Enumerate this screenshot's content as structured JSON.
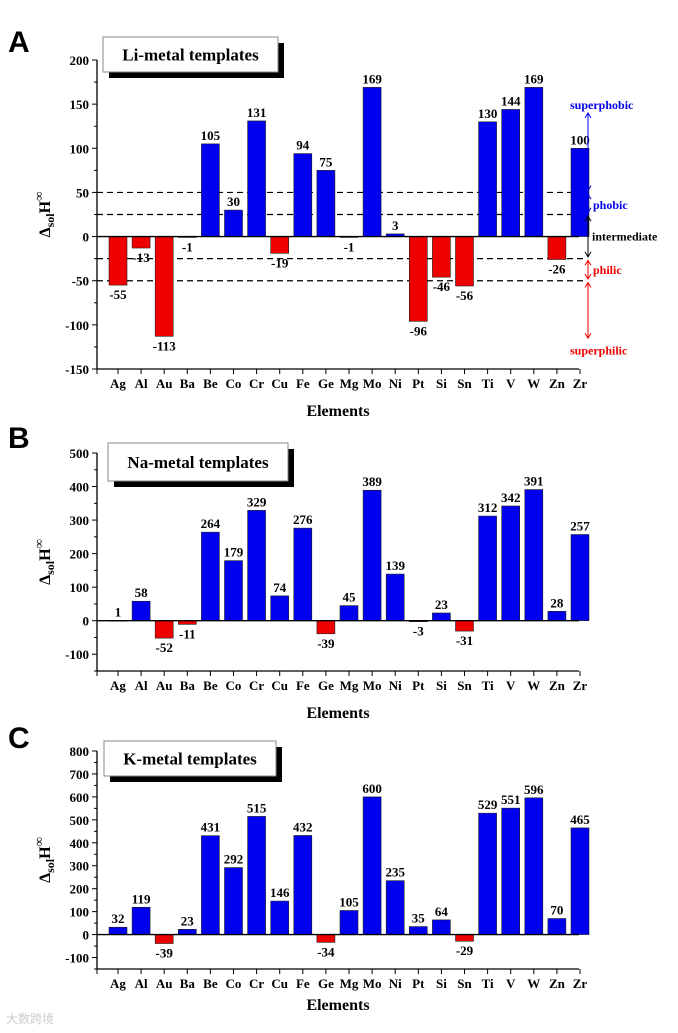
{
  "chart_data": [
    {
      "type": "bar",
      "panel": "A",
      "title": "Li-metal templates",
      "xlabel": "Elements",
      "ylabel": "ΔsolH∞",
      "ylim": [
        -150,
        200
      ],
      "yticks": [
        -150,
        -100,
        -50,
        0,
        50,
        100,
        150,
        200
      ],
      "categories": [
        "Ag",
        "Al",
        "Au",
        "Ba",
        "Be",
        "Co",
        "Cr",
        "Cu",
        "Fe",
        "Ge",
        "Mg",
        "Mo",
        "Ni",
        "Pt",
        "Si",
        "Sn",
        "Ti",
        "V",
        "W",
        "Zn",
        "Zr"
      ],
      "values": [
        -55,
        -13,
        -113,
        -1,
        105,
        30,
        131,
        -19,
        94,
        75,
        -1,
        169,
        3,
        -96,
        -46,
        -56,
        130,
        144,
        169,
        -26,
        100
      ],
      "reference_lines": [
        50,
        25,
        -25,
        -50
      ],
      "annotations": [
        {
          "label": "superphobic",
          "color": "#0000ee"
        },
        {
          "label": "phobic",
          "color": "#0000ee"
        },
        {
          "label": "intermediate",
          "color": "#000000"
        },
        {
          "label": "philic",
          "color": "#ee0000"
        },
        {
          "label": "superphilic",
          "color": "#ee0000"
        }
      ]
    },
    {
      "type": "bar",
      "panel": "B",
      "title": "Na-metal templates",
      "xlabel": "Elements",
      "ylabel": "ΔsolH∞",
      "ylim": [
        -150,
        500
      ],
      "yticks": [
        -100,
        0,
        100,
        200,
        300,
        400,
        500
      ],
      "categories": [
        "Ag",
        "Al",
        "Au",
        "Ba",
        "Be",
        "Co",
        "Cr",
        "Cu",
        "Fe",
        "Ge",
        "Mg",
        "Mo",
        "Ni",
        "Pt",
        "Si",
        "Sn",
        "Ti",
        "V",
        "W",
        "Zn",
        "Zr"
      ],
      "values": [
        1,
        58,
        -52,
        -11,
        264,
        179,
        329,
        74,
        276,
        -39,
        45,
        389,
        139,
        -3,
        23,
        -31,
        312,
        342,
        391,
        28,
        257
      ]
    },
    {
      "type": "bar",
      "panel": "C",
      "title": "K-metal templates",
      "xlabel": "Elements",
      "ylabel": "ΔsolH∞",
      "ylim": [
        -150,
        800
      ],
      "yticks": [
        -100,
        0,
        100,
        200,
        300,
        400,
        500,
        600,
        700,
        800
      ],
      "categories": [
        "Ag",
        "Al",
        "Au",
        "Ba",
        "Be",
        "Co",
        "Cr",
        "Cu",
        "Fe",
        "Ge",
        "Mg",
        "Mo",
        "Ni",
        "Pt",
        "Si",
        "Sn",
        "Ti",
        "V",
        "W",
        "Zn",
        "Zr"
      ],
      "values": [
        32,
        119,
        -39,
        23,
        431,
        292,
        515,
        146,
        432,
        -34,
        105,
        600,
        235,
        35,
        64,
        -29,
        529,
        551,
        596,
        70,
        465
      ]
    }
  ],
  "colors": {
    "positive": "#0000ee",
    "negative": "#ee0000"
  },
  "watermark": "大数跨境"
}
